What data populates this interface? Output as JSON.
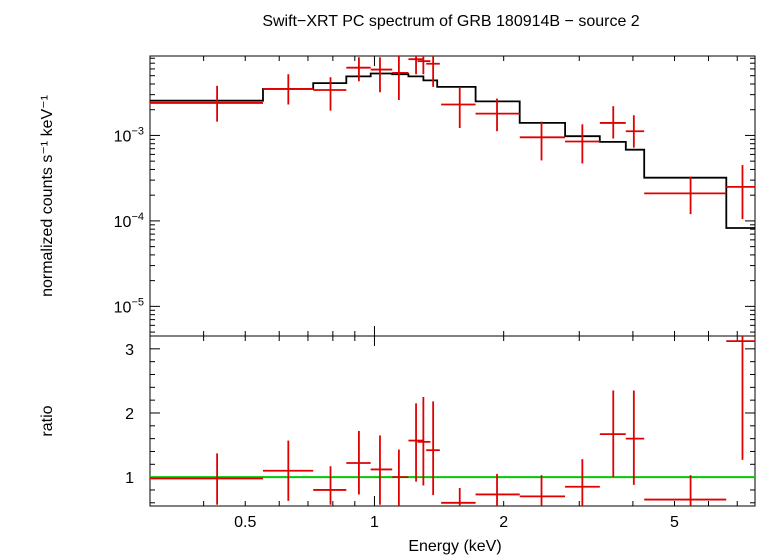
{
  "chart_data": [
    {
      "type": "step+errorbar",
      "title": "Swift−XRT PC spectrum of GRB 180914B − source 2",
      "xlabel": "Energy (keV)",
      "ylabel": "normalized counts s⁻¹ keV⁻¹",
      "xscale": "log",
      "yscale": "log",
      "xlim": [
        0.3,
        7.7
      ],
      "ylim": [
        4.5e-06,
        0.0085
      ],
      "yticks": [
        {
          "value": 0.001,
          "mantissa": "10",
          "exp": "−3"
        },
        {
          "value": 0.0001,
          "mantissa": "10",
          "exp": "−4"
        },
        {
          "value": 1e-05,
          "mantissa": "10",
          "exp": "−5"
        }
      ],
      "model_color": "#000000",
      "data_color": "#e00000",
      "model_steps": [
        {
          "x0": 0.3,
          "x1": 0.55,
          "y": 0.00255
        },
        {
          "x0": 0.55,
          "x1": 0.72,
          "y": 0.0035
        },
        {
          "x0": 0.72,
          "x1": 0.86,
          "y": 0.0041
        },
        {
          "x0": 0.86,
          "x1": 0.98,
          "y": 0.0049
        },
        {
          "x0": 0.98,
          "x1": 1.1,
          "y": 0.0053
        },
        {
          "x0": 1.1,
          "x1": 1.2,
          "y": 0.0052
        },
        {
          "x0": 1.2,
          "x1": 1.3,
          "y": 0.0049
        },
        {
          "x0": 1.3,
          "x1": 1.4,
          "y": 0.0044
        },
        {
          "x0": 1.4,
          "x1": 1.72,
          "y": 0.0037
        },
        {
          "x0": 1.72,
          "x1": 2.18,
          "y": 0.0025
        },
        {
          "x0": 2.18,
          "x1": 2.78,
          "y": 0.0014
        },
        {
          "x0": 2.78,
          "x1": 3.35,
          "y": 0.00098
        },
        {
          "x0": 3.35,
          "x1": 3.85,
          "y": 0.00084
        },
        {
          "x0": 3.85,
          "x1": 4.25,
          "y": 0.00068
        },
        {
          "x0": 4.25,
          "x1": 6.6,
          "y": 0.00032
        },
        {
          "x0": 6.6,
          "x1": 7.7,
          "y": 8.25e-05
        }
      ],
      "points": [
        {
          "x": 0.43,
          "xlo": 0.3,
          "xhi": 0.55,
          "y": 0.0024,
          "ylo": 0.00145,
          "yhi": 0.0038
        },
        {
          "x": 0.63,
          "xlo": 0.55,
          "xhi": 0.72,
          "y": 0.0035,
          "ylo": 0.0023,
          "yhi": 0.0052
        },
        {
          "x": 0.79,
          "xlo": 0.72,
          "xhi": 0.86,
          "y": 0.0034,
          "ylo": 0.00195,
          "yhi": 0.0048
        },
        {
          "x": 0.92,
          "xlo": 0.86,
          "xhi": 0.98,
          "y": 0.0062,
          "ylo": 0.0043,
          "yhi": 0.0082
        },
        {
          "x": 1.03,
          "xlo": 0.98,
          "xhi": 1.1,
          "y": 0.0059,
          "ylo": 0.0032,
          "yhi": 0.0082
        },
        {
          "x": 1.14,
          "xlo": 1.1,
          "xhi": 1.2,
          "y": 0.0054,
          "ylo": 0.0026,
          "yhi": 0.0085
        },
        {
          "x": 1.25,
          "xlo": 1.2,
          "xhi": 1.3,
          "y": 0.0078,
          "ylo": 0.0052,
          "yhi": 0.0085
        },
        {
          "x": 1.3,
          "xlo": 1.26,
          "xhi": 1.35,
          "y": 0.0074,
          "ylo": 0.0052,
          "yhi": 0.0085
        },
        {
          "x": 1.37,
          "xlo": 1.32,
          "xhi": 1.42,
          "y": 0.0069,
          "ylo": 0.0037,
          "yhi": 0.0085
        },
        {
          "x": 1.58,
          "xlo": 1.43,
          "xhi": 1.72,
          "y": 0.0023,
          "ylo": 0.00122,
          "yhi": 0.0036
        },
        {
          "x": 1.93,
          "xlo": 1.72,
          "xhi": 2.18,
          "y": 0.0018,
          "ylo": 0.00112,
          "yhi": 0.0027
        },
        {
          "x": 2.45,
          "xlo": 2.18,
          "xhi": 2.78,
          "y": 0.00095,
          "ylo": 0.00051,
          "yhi": 0.00145
        },
        {
          "x": 3.05,
          "xlo": 2.78,
          "xhi": 3.35,
          "y": 0.00085,
          "ylo": 0.00047,
          "yhi": 0.00135
        },
        {
          "x": 3.6,
          "xlo": 3.35,
          "xhi": 3.85,
          "y": 0.0014,
          "ylo": 0.00092,
          "yhi": 0.0022
        },
        {
          "x": 4.02,
          "xlo": 3.85,
          "xhi": 4.25,
          "y": 0.00112,
          "ylo": 0.00072,
          "yhi": 0.00172
        },
        {
          "x": 5.45,
          "xlo": 4.25,
          "xhi": 6.6,
          "y": 0.00021,
          "ylo": 0.00012,
          "yhi": 0.00033
        },
        {
          "x": 7.2,
          "xlo": 6.6,
          "xhi": 7.7,
          "y": 0.00025,
          "ylo": 0.000105,
          "yhi": 0.00045
        }
      ]
    },
    {
      "type": "errorbar",
      "ylabel": "ratio",
      "xlabel": "Energy (keV)",
      "xscale": "log",
      "yscale": "linear",
      "xlim": [
        0.3,
        7.7
      ],
      "ylim": [
        0.55,
        3.2
      ],
      "yticks": [
        "1",
        "2",
        "3"
      ],
      "xticks": [
        {
          "value": 0.5,
          "label": "0.5"
        },
        {
          "value": 1,
          "label": "1"
        },
        {
          "value": 2,
          "label": "2"
        },
        {
          "value": 5,
          "label": "5"
        }
      ],
      "reference_line": {
        "y": 1,
        "color": "#00cc00"
      },
      "data_color": "#e00000",
      "points": [
        {
          "x": 0.43,
          "xlo": 0.3,
          "xhi": 0.55,
          "y": 0.98,
          "ylo": 0.57,
          "yhi": 1.37
        },
        {
          "x": 0.63,
          "xlo": 0.55,
          "xhi": 0.72,
          "y": 1.1,
          "ylo": 0.63,
          "yhi": 1.57
        },
        {
          "x": 0.79,
          "xlo": 0.72,
          "xhi": 0.86,
          "y": 0.8,
          "ylo": 0.57,
          "yhi": 1.17
        },
        {
          "x": 0.92,
          "xlo": 0.86,
          "xhi": 0.98,
          "y": 1.22,
          "ylo": 0.73,
          "yhi": 1.72
        },
        {
          "x": 1.03,
          "xlo": 0.98,
          "xhi": 1.1,
          "y": 1.12,
          "ylo": 0.57,
          "yhi": 1.65
        },
        {
          "x": 1.14,
          "xlo": 1.1,
          "xhi": 1.2,
          "y": 1.0,
          "ylo": 0.55,
          "yhi": 1.43
        },
        {
          "x": 1.25,
          "xlo": 1.2,
          "xhi": 1.3,
          "y": 1.57,
          "ylo": 0.93,
          "yhi": 2.15
        },
        {
          "x": 1.3,
          "xlo": 1.26,
          "xhi": 1.35,
          "y": 1.55,
          "ylo": 0.87,
          "yhi": 2.25
        },
        {
          "x": 1.37,
          "xlo": 1.32,
          "xhi": 1.42,
          "y": 1.42,
          "ylo": 0.72,
          "yhi": 2.18
        },
        {
          "x": 1.58,
          "xlo": 1.43,
          "xhi": 1.72,
          "y": 0.6,
          "ylo": 0.55,
          "yhi": 0.83
        },
        {
          "x": 1.93,
          "xlo": 1.72,
          "xhi": 2.18,
          "y": 0.73,
          "ylo": 0.55,
          "yhi": 1.05
        },
        {
          "x": 2.45,
          "xlo": 2.18,
          "xhi": 2.78,
          "y": 0.7,
          "ylo": 0.55,
          "yhi": 1.03
        },
        {
          "x": 3.05,
          "xlo": 2.78,
          "xhi": 3.35,
          "y": 0.85,
          "ylo": 0.55,
          "yhi": 1.28
        },
        {
          "x": 3.6,
          "xlo": 3.35,
          "xhi": 3.85,
          "y": 1.67,
          "ylo": 1.0,
          "yhi": 2.35
        },
        {
          "x": 4.02,
          "xlo": 3.85,
          "xhi": 4.25,
          "y": 1.6,
          "ylo": 0.88,
          "yhi": 2.35
        },
        {
          "x": 5.45,
          "xlo": 4.25,
          "xhi": 6.6,
          "y": 0.65,
          "ylo": 0.55,
          "yhi": 1.03
        },
        {
          "x": 7.2,
          "xlo": 6.6,
          "xhi": 7.7,
          "y": 3.12,
          "ylo": 1.27,
          "yhi": 3.2
        }
      ]
    }
  ]
}
